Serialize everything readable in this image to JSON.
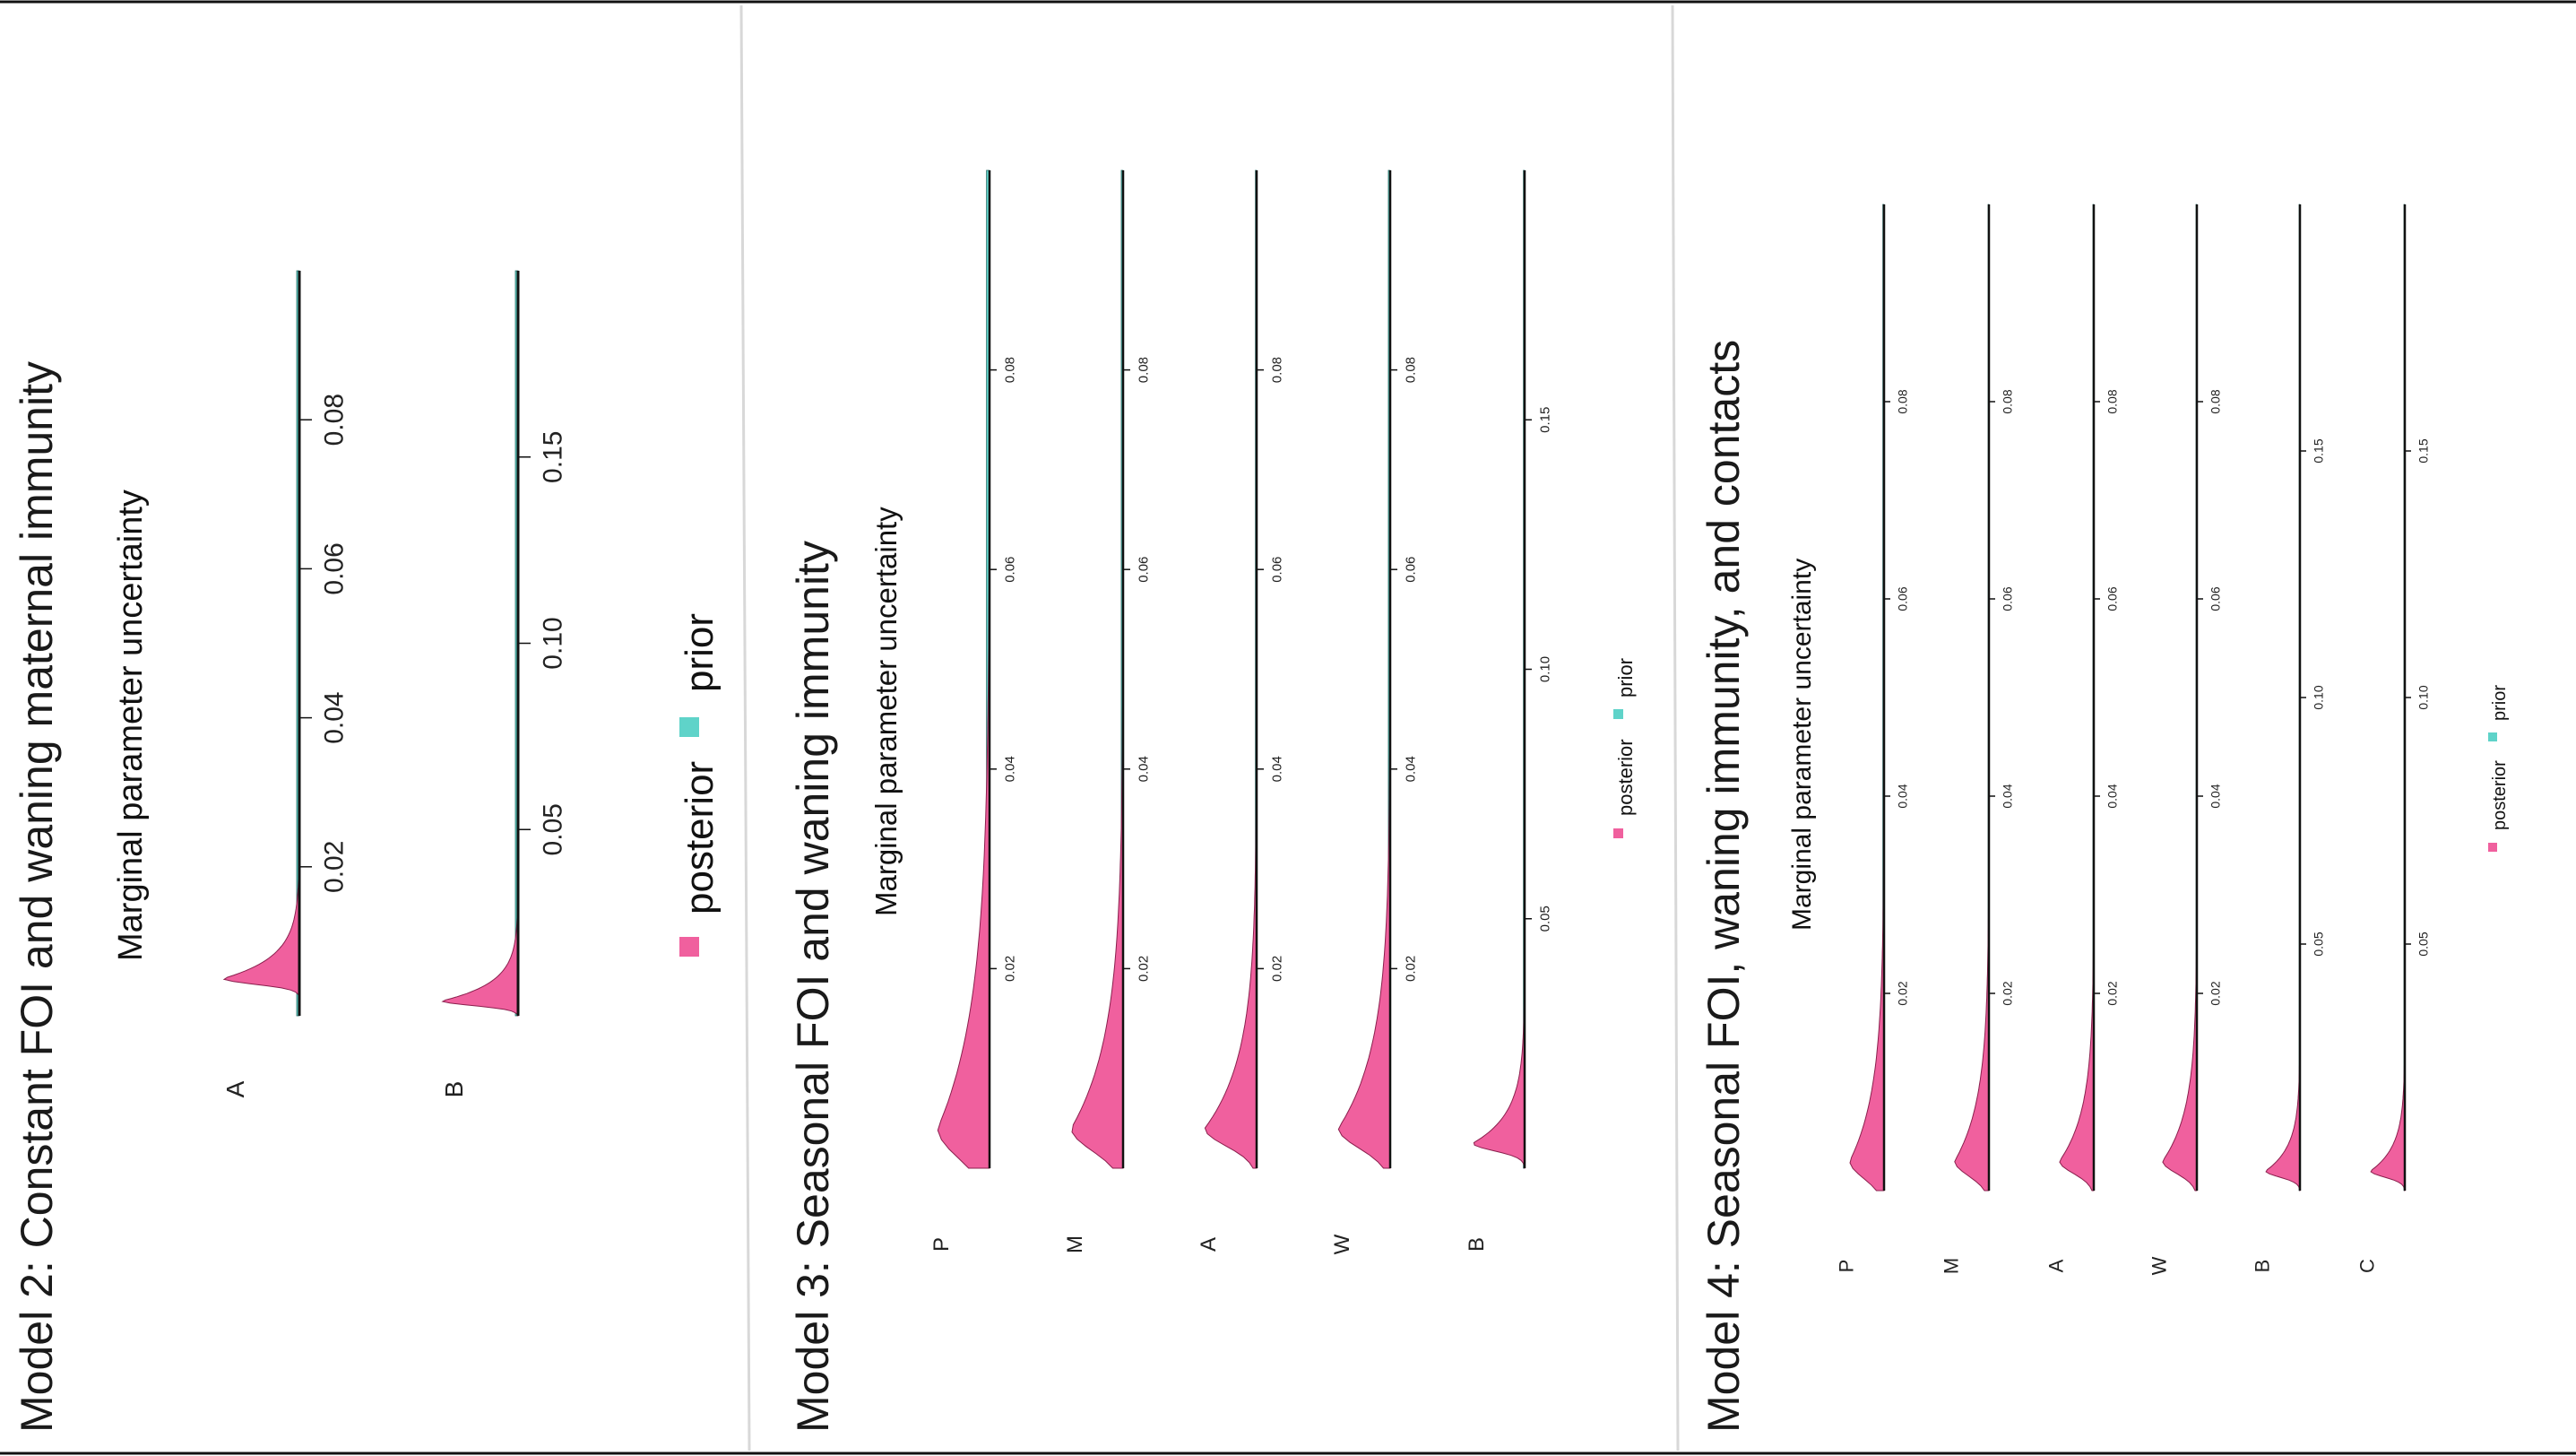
{
  "colors": {
    "posterior": "#f0609e",
    "prior": "#5fd3c9",
    "axis": "#111111",
    "divider": "#d8d8d8"
  },
  "panels": [
    {
      "title": "Model 2: Constant FOI and waning maternal immunity",
      "subtitle": "Marginal parameter uncertainty",
      "legend": {
        "posterior": "posterior",
        "prior": "prior"
      }
    },
    {
      "title": "Model 3: Seasonal FOI and waning immunity",
      "subtitle": "Marginal parameter uncertainty",
      "legend": {
        "posterior": "posterior",
        "prior": "prior"
      }
    },
    {
      "title": "Model 4: Seasonal FOI, waning immunity, and contacts",
      "subtitle": "Marginal parameter uncertainty",
      "legend": {
        "posterior": "posterior",
        "prior": "prior"
      }
    }
  ],
  "chart_data": [
    {
      "type": "area",
      "title": "Model 2: Constant FOI and waning maternal immunity",
      "subtitle": "Marginal parameter uncertainty",
      "legend": [
        "posterior",
        "prior"
      ],
      "parameters": [
        {
          "name": "A",
          "xlim": [
            0,
            0.1
          ],
          "ticks": [
            "0.02",
            "0.04",
            "0.06",
            "0.08"
          ],
          "posterior": {
            "mode": 0.005,
            "scale": 0.003,
            "height": 0.85
          },
          "prior": {
            "from": 0.0,
            "to": 0.1,
            "height": 0.03
          }
        },
        {
          "name": "B",
          "xlim": [
            0,
            0.2
          ],
          "ticks": [
            "0.05",
            "0.10",
            "0.15"
          ],
          "posterior": {
            "mode": 0.004,
            "scale": 0.005,
            "height": 0.85
          },
          "prior": {
            "from": 0.0,
            "to": 0.2,
            "height": 0.03
          }
        }
      ]
    },
    {
      "type": "area",
      "title": "Model 3: Seasonal FOI and waning immunity",
      "subtitle": "Marginal parameter uncertainty",
      "legend": [
        "posterior",
        "prior"
      ],
      "parameters": [
        {
          "name": "P",
          "xlim": [
            0,
            0.1
          ],
          "ticks": [
            "0.02",
            "0.04",
            "0.06",
            "0.08"
          ],
          "posterior": {
            "mode": 0.004,
            "scale": 0.012,
            "height": 0.85
          },
          "prior": {
            "from": 0.0,
            "to": 0.1,
            "height": 0.05
          }
        },
        {
          "name": "M",
          "xlim": [
            0,
            0.1
          ],
          "ticks": [
            "0.02",
            "0.04",
            "0.06",
            "0.08"
          ],
          "posterior": {
            "mode": 0.004,
            "scale": 0.009,
            "height": 0.85
          },
          "prior": {
            "from": 0.0,
            "to": 0.1,
            "height": 0.03
          }
        },
        {
          "name": "A",
          "xlim": [
            0,
            0.1
          ],
          "ticks": [
            "0.02",
            "0.04",
            "0.06",
            "0.08"
          ],
          "posterior": {
            "mode": 0.004,
            "scale": 0.007,
            "height": 0.85
          },
          "prior": {
            "from": 0.0,
            "to": 0.1,
            "height": 0.02
          }
        },
        {
          "name": "W",
          "xlim": [
            0,
            0.1
          ],
          "ticks": [
            "0.02",
            "0.04",
            "0.06",
            "0.08"
          ],
          "posterior": {
            "mode": 0.004,
            "scale": 0.008,
            "height": 0.85
          },
          "prior": {
            "from": 0.0,
            "to": 0.1,
            "height": 0.03
          }
        },
        {
          "name": "B",
          "xlim": [
            0,
            0.2
          ],
          "ticks": [
            "0.05",
            "0.10",
            "0.15"
          ],
          "posterior": {
            "mode": 0.005,
            "scale": 0.006,
            "height": 0.85
          },
          "prior": {
            "from": 0.0,
            "to": 0.2,
            "height": 0.02
          }
        }
      ]
    },
    {
      "type": "area",
      "title": "Model 4: Seasonal FOI, waning immunity, and contacts",
      "subtitle": "Marginal parameter uncertainty",
      "legend": [
        "posterior",
        "prior"
      ],
      "parameters": [
        {
          "name": "P",
          "xlim": [
            0,
            0.1
          ],
          "ticks": [
            "0.02",
            "0.04",
            "0.06",
            "0.08"
          ],
          "posterior": {
            "mode": 0.003,
            "scale": 0.007,
            "height": 0.85
          },
          "prior": {
            "from": 0.0,
            "to": 0.1,
            "height": 0.03
          }
        },
        {
          "name": "M",
          "xlim": [
            0,
            0.1
          ],
          "ticks": [
            "0.02",
            "0.04",
            "0.06",
            "0.08"
          ],
          "posterior": {
            "mode": 0.003,
            "scale": 0.006,
            "height": 0.85
          },
          "prior": {
            "from": 0.0,
            "to": 0.1,
            "height": 0.02
          }
        },
        {
          "name": "A",
          "xlim": [
            0,
            0.1
          ],
          "ticks": [
            "0.02",
            "0.04",
            "0.06",
            "0.08"
          ],
          "posterior": {
            "mode": 0.003,
            "scale": 0.005,
            "height": 0.85
          },
          "prior": {
            "from": 0.0,
            "to": 0.1,
            "height": 0.02
          }
        },
        {
          "name": "W",
          "xlim": [
            0,
            0.1
          ],
          "ticks": [
            "0.02",
            "0.04",
            "0.06",
            "0.08"
          ],
          "posterior": {
            "mode": 0.003,
            "scale": 0.005,
            "height": 0.85
          },
          "prior": {
            "from": 0.0,
            "to": 0.1,
            "height": 0.02
          }
        },
        {
          "name": "B",
          "xlim": [
            0,
            0.2
          ],
          "ticks": [
            "0.05",
            "0.10",
            "0.15"
          ],
          "posterior": {
            "mode": 0.004,
            "scale": 0.005,
            "height": 0.85
          },
          "prior": {
            "from": 0.0,
            "to": 0.2,
            "height": 0.02
          }
        },
        {
          "name": "C",
          "xlim": [
            0,
            0.2
          ],
          "ticks": [
            "0.05",
            "0.10",
            "0.15"
          ],
          "posterior": {
            "mode": 0.004,
            "scale": 0.005,
            "height": 0.85
          },
          "prior": {
            "from": 0.0,
            "to": 0.2,
            "height": 0.02
          }
        }
      ]
    }
  ]
}
